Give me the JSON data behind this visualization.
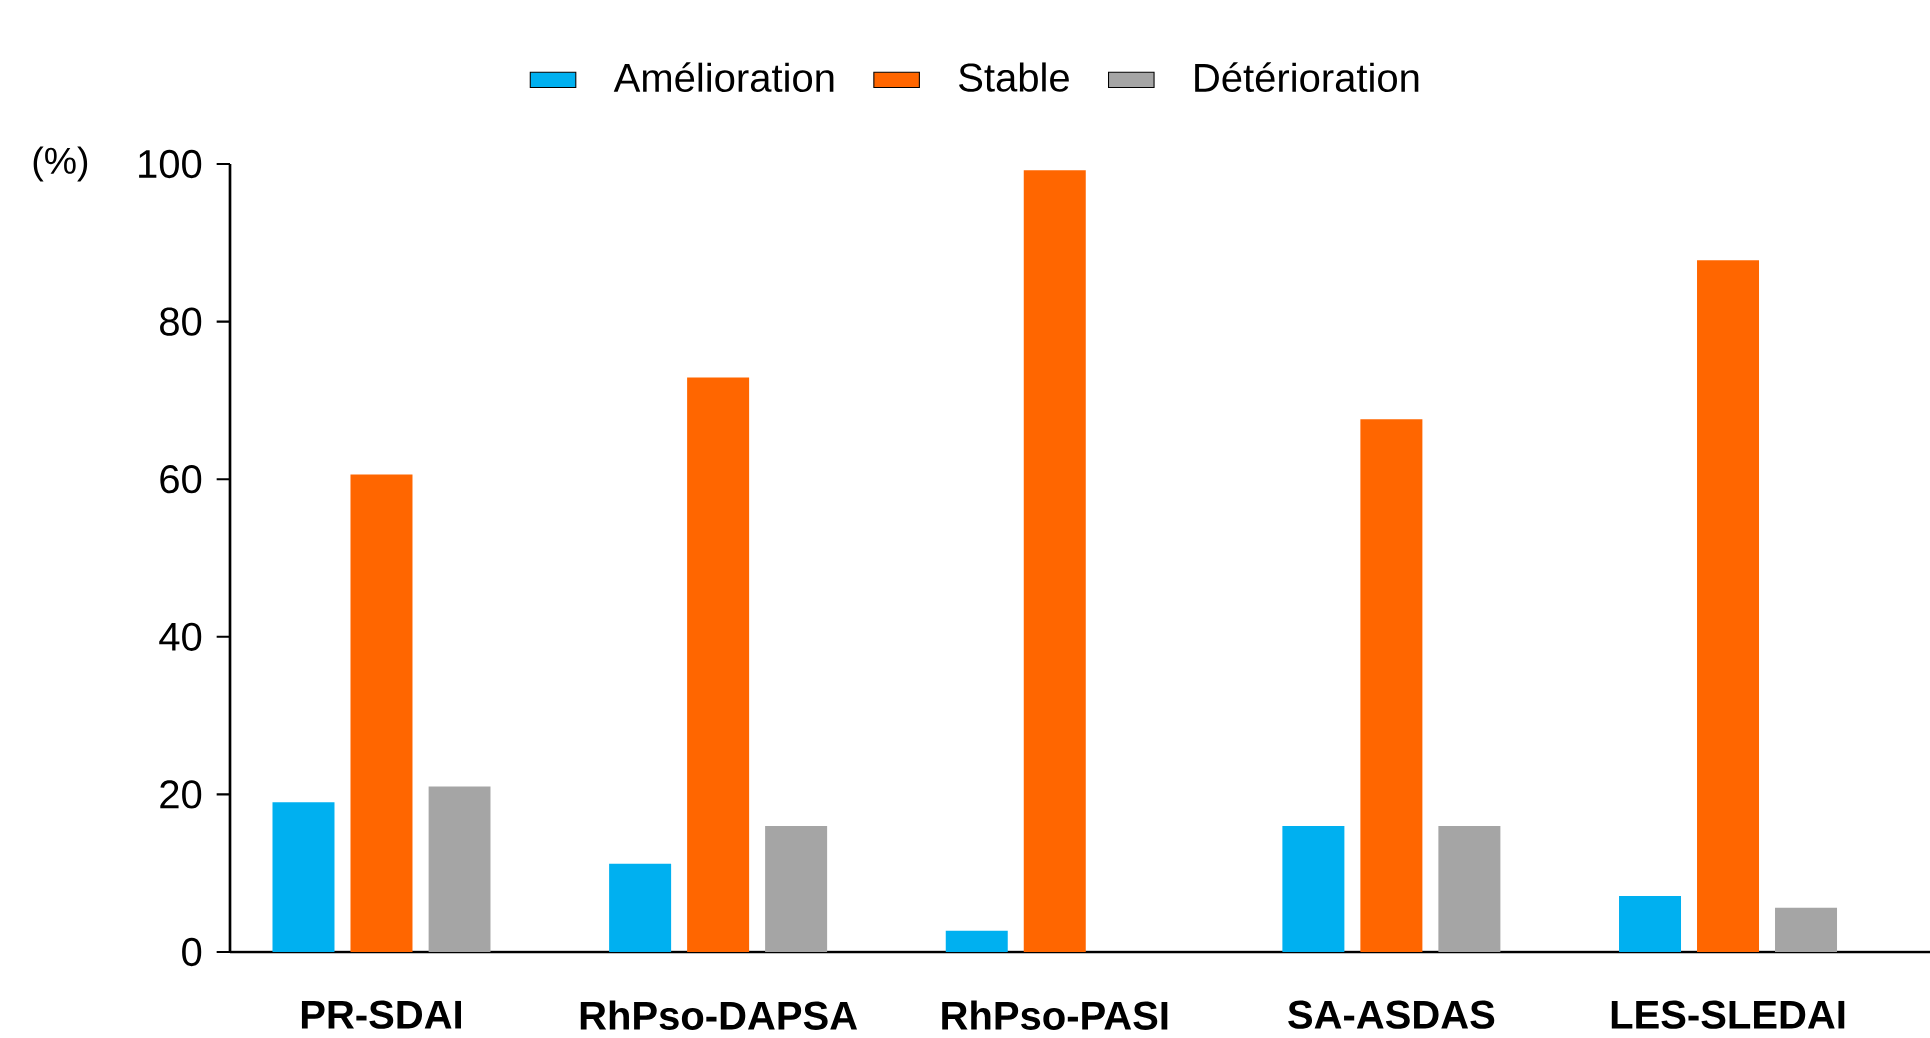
{
  "chart_data": {
    "type": "bar",
    "ylabel": "(%)",
    "categories": [
      "PR-SDAI",
      "RhPso-DAPSA",
      "RhPso-PASI",
      "SA-ASDAS",
      "LES-SLEDAI"
    ],
    "series": [
      {
        "name": "Amélioration",
        "color": "#00b0f0",
        "values": [
          19,
          11.2,
          2.7,
          16,
          7.1
        ]
      },
      {
        "name": "Stable",
        "color": "#ff6600",
        "values": [
          60.6,
          72.9,
          99.2,
          67.6,
          87.8
        ]
      },
      {
        "name": "Détérioration",
        "color": "#a5a5a5",
        "values": [
          21,
          16,
          0,
          16,
          5.6
        ]
      }
    ],
    "ylim": [
      0,
      100
    ],
    "yticks": [
      0,
      20,
      40,
      60,
      80,
      100
    ],
    "legend": "top"
  }
}
